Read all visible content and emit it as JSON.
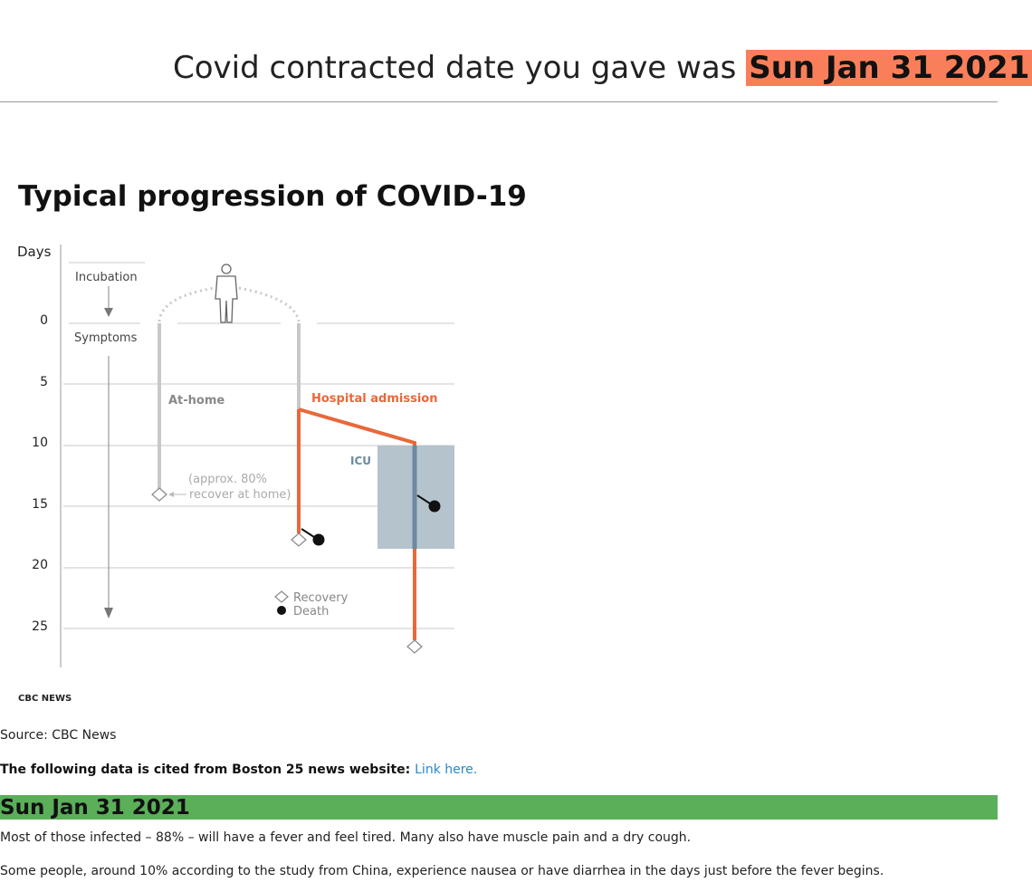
{
  "header": {
    "prefix": "Covid contracted date you gave was",
    "date": "Sun Jan 31 2021"
  },
  "infographic": {
    "title": "Typical progression of COVID-19",
    "axis_label": "Days",
    "ticks": [
      "0",
      "5",
      "10",
      "15",
      "20",
      "25"
    ],
    "incubation_label": "Incubation",
    "symptoms_label": "Symptoms",
    "at_home_label": "At-home",
    "hospital_label": "Hospital admission",
    "icu_label": "ICU",
    "recover_note_1": "(approx. 80%",
    "recover_note_2": "recover at home)",
    "legend_recovery": "Recovery",
    "legend_death": "Death",
    "brand": "CBC NEWS",
    "colors": {
      "hospital": "#e8683a",
      "icu_box": "#b4c3cc",
      "icu_line": "#6b8aa0",
      "gray_line": "#c8c8c8"
    }
  },
  "source_text": "Source: CBC News",
  "cite": {
    "text": "The following data is cited from Boston 25 news website:",
    "link_label": "Link here."
  },
  "section": {
    "date": "Sun Jan 31 2021",
    "para1": "Most of those infected – 88% – will have a fever and feel tired. Many also have muscle pain and a dry cough.",
    "para2": "Some people, around 10% according to the study from China, experience nausea or have diarrhea in the days just before the fever begins."
  }
}
